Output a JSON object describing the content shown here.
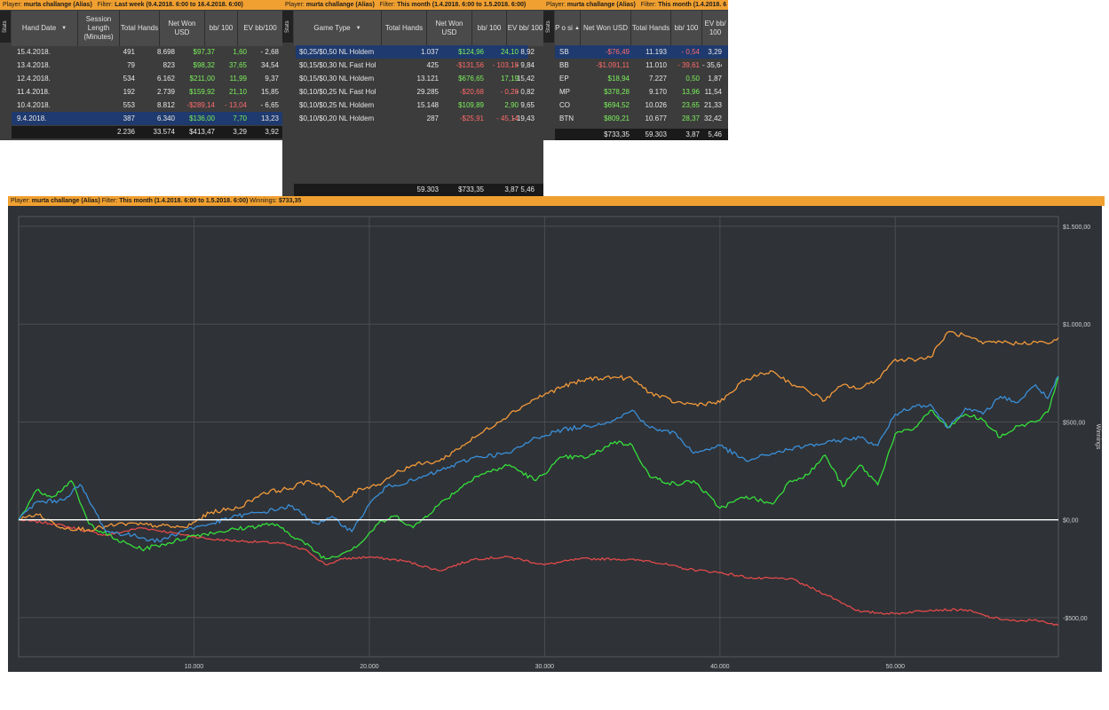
{
  "panel1": {
    "player_label": "Player:",
    "player": "murta challange (Alias)",
    "filter_label": "Filter:",
    "filter": "Last week (9.4.2018. 6:00 to 16.4.2018. 6:00)",
    "stats_tab": "Stats",
    "columns": [
      "Hand Date",
      "Session Length (Minutes)",
      "Total Hands",
      "Net Won USD",
      "bb/ 100",
      "EV bb/100"
    ],
    "rows": [
      {
        "date": "15.4.2018.",
        "len": "491",
        "hands": "8.698",
        "won": "$97,37",
        "bb": "1,60",
        "ev": "- 2,68",
        "won_pos": true,
        "bb_pos": true,
        "selected": false
      },
      {
        "date": "13.4.2018.",
        "len": "79",
        "hands": "823",
        "won": "$98,32",
        "bb": "37,65",
        "ev": "34,54",
        "won_pos": true,
        "bb_pos": true,
        "selected": false
      },
      {
        "date": "12.4.2018.",
        "len": "534",
        "hands": "6.162",
        "won": "$211,00",
        "bb": "11,99",
        "ev": "9,37",
        "won_pos": true,
        "bb_pos": true,
        "selected": false
      },
      {
        "date": "11.4.2018.",
        "len": "192",
        "hands": "2.739",
        "won": "$159,92",
        "bb": "21,10",
        "ev": "15,85",
        "won_pos": true,
        "bb_pos": true,
        "selected": false
      },
      {
        "date": "10.4.2018.",
        "len": "553",
        "hands": "8.812",
        "won": "-$289,14",
        "bb": "- 13,04",
        "ev": "- 6,65",
        "won_pos": false,
        "bb_pos": false,
        "selected": false
      },
      {
        "date": "9.4.2018.",
        "len": "387",
        "hands": "6.340",
        "won": "$136,00",
        "bb": "7,70",
        "ev": "13,23",
        "won_pos": true,
        "bb_pos": true,
        "selected": true
      }
    ],
    "totals": {
      "len": "2.236",
      "hands": "33.574",
      "won": "$413,47",
      "bb": "3,29",
      "ev": "3,92"
    }
  },
  "panel2": {
    "player_label": "Player:",
    "player": "murta challange (Alias)",
    "filter_label": "Filter:",
    "filter": "This month (1.4.2018. 6:00 to 1.5.2018. 6:00)",
    "stats_tab": "Stats",
    "columns": [
      "Game Type",
      "Total Hands",
      "Net Won USD",
      "bb/ 100",
      "EV bb/ 100"
    ],
    "rows": [
      {
        "game": "$0,25/$0,50 NL Holdem",
        "hands": "1.037",
        "won": "$124,96",
        "bb": "24,10",
        "ev": "8,92",
        "won_pos": true,
        "bb_pos": true,
        "selected": true
      },
      {
        "game": "$0,15/$0,30 NL Fast Hol",
        "hands": "425",
        "won": "-$131,56",
        "bb": "- 103,18",
        "ev": "- 9,84",
        "won_pos": false,
        "bb_pos": false,
        "selected": false
      },
      {
        "game": "$0,15/$0,30 NL Holdem",
        "hands": "13.121",
        "won": "$676,65",
        "bb": "17,19",
        "ev": "15,42",
        "won_pos": true,
        "bb_pos": true,
        "selected": false
      },
      {
        "game": "$0,10/$0,25 NL Fast Hol",
        "hands": "29.285",
        "won": "-$20,68",
        "bb": "- 0,28",
        "ev": "- 0,82",
        "won_pos": false,
        "bb_pos": false,
        "selected": false
      },
      {
        "game": "$0,10/$0,25 NL Holdem",
        "hands": "15.148",
        "won": "$109,89",
        "bb": "2,90",
        "ev": "9,65",
        "won_pos": true,
        "bb_pos": true,
        "selected": false
      },
      {
        "game": "$0,10/$0,20 NL Holdem",
        "hands": "287",
        "won": "-$25,91",
        "bb": "- 45,14",
        "ev": "- 19,43",
        "won_pos": false,
        "bb_pos": false,
        "selected": false
      }
    ],
    "totals": {
      "hands": "59.303",
      "won": "$733,35",
      "bb": "3,87",
      "ev": "5,46"
    }
  },
  "panel3": {
    "player_label": "Player:",
    "player": "murta challange (Alias)",
    "filter_label": "Filter:",
    "filter": "This month (1.4.2018. 6",
    "stats_tab": "Stats",
    "columns": [
      "P o si",
      "Net Won USD",
      "Total Hands",
      "bb/ 100",
      "EV bb/ 100"
    ],
    "rows": [
      {
        "pos": "SB",
        "won": "-$76,49",
        "hands": "11.193",
        "bb": "- 0,54",
        "ev": "3,29",
        "won_pos": false,
        "bb_pos": false,
        "selected": true
      },
      {
        "pos": "BB",
        "won": "-$1.091,11",
        "hands": "11.010",
        "bb": "- 39,61",
        "ev": "- 35,64",
        "won_pos": false,
        "bb_pos": false,
        "selected": false
      },
      {
        "pos": "EP",
        "won": "$18,94",
        "hands": "7.227",
        "bb": "0,50",
        "ev": "1,87",
        "won_pos": true,
        "bb_pos": true,
        "selected": false
      },
      {
        "pos": "MP",
        "won": "$378,28",
        "hands": "9.170",
        "bb": "13,96",
        "ev": "11,54",
        "won_pos": true,
        "bb_pos": true,
        "selected": false
      },
      {
        "pos": "CO",
        "won": "$694,52",
        "hands": "10.026",
        "bb": "23,65",
        "ev": "21,33",
        "won_pos": true,
        "bb_pos": true,
        "selected": false
      },
      {
        "pos": "BTN",
        "won": "$809,21",
        "hands": "10.677",
        "bb": "28,37",
        "ev": "32,42",
        "won_pos": true,
        "bb_pos": true,
        "selected": false
      }
    ],
    "totals": {
      "won": "$733,35",
      "hands": "59.303",
      "bb": "3,87",
      "ev": "5,46"
    }
  },
  "graph": {
    "player_label": "Player:",
    "player": "murta challange (Alias)",
    "filter_label": "Filter:",
    "filter": "This month (1.4.2018. 6:00 to 1.5.2018. 6:00)",
    "winnings_label": "Winnings:",
    "winnings": "$733,35"
  },
  "chart_data": {
    "type": "line",
    "ylabel": "Winnings",
    "xlim": [
      0,
      59303
    ],
    "ylim": [
      -700,
      1550
    ],
    "x_ticks": [
      10000,
      20000,
      30000,
      40000,
      50000
    ],
    "x_tick_labels": [
      "10.000",
      "20.000",
      "30.000",
      "40.000",
      "50.000"
    ],
    "y_ticks": [
      -500,
      0,
      500,
      1000,
      1500
    ],
    "y_tick_labels": [
      "-$500,00",
      "$0,00",
      "$500,00",
      "$1.000,00",
      "$1.500,00"
    ],
    "grid": true,
    "legend": "none",
    "colors": {
      "blue": "#3a8fd8",
      "orange": "#f29a3a",
      "green": "#35e03a",
      "red": "#e24a4a",
      "zero": "#ffffff",
      "background": "#2f3237",
      "grid": "#4a4d52"
    },
    "series": [
      {
        "color": "blue",
        "x": [
          0,
          1000,
          2500,
          3500,
          5000,
          6500,
          8000,
          9500,
          11000,
          12500,
          14000,
          15500,
          17000,
          18000,
          19000,
          20000,
          21000,
          22500,
          24000,
          26000,
          28000,
          29500,
          31000,
          32500,
          34000,
          35000,
          36000,
          37500,
          38500,
          40000,
          41500,
          43000,
          44000,
          45000,
          46000,
          47000,
          48000,
          49000,
          50000,
          51000,
          52000,
          53000,
          54000,
          55000,
          56000,
          57000,
          58000,
          58700,
          59303
        ],
        "y": [
          0,
          90,
          100,
          180,
          -60,
          -80,
          -110,
          -50,
          -20,
          20,
          40,
          70,
          -20,
          10,
          -60,
          80,
          170,
          200,
          250,
          320,
          340,
          420,
          460,
          480,
          510,
          560,
          470,
          440,
          340,
          380,
          300,
          340,
          360,
          380,
          390,
          410,
          420,
          380,
          540,
          580,
          590,
          470,
          570,
          540,
          630,
          600,
          690,
          620,
          733
        ]
      },
      {
        "color": "orange",
        "x": [
          0,
          1000,
          2500,
          4000,
          6000,
          8000,
          9500,
          11000,
          12500,
          14000,
          15500,
          16500,
          17500,
          18500,
          19500,
          20500,
          21500,
          22500,
          24000,
          26000,
          28000,
          29500,
          31000,
          32500,
          34000,
          35000,
          36000,
          37500,
          38500,
          40000,
          41500,
          43000,
          44000,
          45000,
          46000,
          47000,
          48000,
          49000,
          50000,
          51000,
          52000,
          53000,
          54000,
          55000,
          56000,
          57000,
          58000,
          58700,
          59303
        ],
        "y": [
          0,
          30,
          -40,
          -50,
          -20,
          -30,
          -40,
          40,
          60,
          140,
          160,
          200,
          170,
          90,
          160,
          180,
          240,
          280,
          300,
          420,
          540,
          620,
          680,
          720,
          730,
          720,
          650,
          600,
          590,
          600,
          720,
          760,
          700,
          660,
          610,
          690,
          670,
          720,
          820,
          820,
          830,
          960,
          940,
          900,
          910,
          900,
          910,
          900,
          930
        ]
      },
      {
        "color": "green",
        "x": [
          0,
          1000,
          2000,
          3000,
          4000,
          5500,
          7000,
          8500,
          10000,
          11500,
          13000,
          14500,
          16000,
          17500,
          18500,
          19500,
          20500,
          21500,
          22500,
          24000,
          26000,
          28000,
          29500,
          31000,
          32500,
          34000,
          35000,
          36000,
          37500,
          38500,
          40000,
          41500,
          43000,
          44000,
          45000,
          46000,
          47000,
          48000,
          49000,
          50000,
          51000,
          52000,
          53000,
          54000,
          55000,
          56000,
          57000,
          58000,
          58700,
          59303
        ],
        "y": [
          0,
          150,
          120,
          200,
          -20,
          -100,
          -150,
          -120,
          -80,
          -60,
          -40,
          -20,
          -100,
          -200,
          -170,
          -120,
          -20,
          20,
          -40,
          80,
          220,
          280,
          200,
          320,
          320,
          400,
          380,
          220,
          180,
          200,
          60,
          120,
          80,
          200,
          230,
          330,
          170,
          280,
          180,
          440,
          460,
          560,
          470,
          540,
          510,
          420,
          480,
          500,
          550,
          733
        ]
      },
      {
        "color": "red",
        "x": [
          0,
          2000,
          3500,
          5000,
          7000,
          9000,
          11000,
          13000,
          15000,
          16500,
          17500,
          18500,
          20000,
          22000,
          24000,
          26000,
          28000,
          30000,
          32000,
          34000,
          36000,
          38000,
          40000,
          42000,
          44000,
          46000,
          48000,
          50000,
          52000,
          54000,
          55500,
          57000,
          58000,
          58700,
          59303
        ],
        "y": [
          0,
          -20,
          -50,
          -80,
          -40,
          -70,
          -100,
          -110,
          -120,
          -160,
          -230,
          -200,
          -190,
          -210,
          -260,
          -200,
          -190,
          -230,
          -200,
          -200,
          -210,
          -250,
          -270,
          -300,
          -300,
          -380,
          -470,
          -480,
          -460,
          -460,
          -500,
          -520,
          -510,
          -530,
          -540
        ]
      },
      {
        "color": "zero",
        "x": [
          0,
          59303
        ],
        "y": [
          0,
          0
        ]
      }
    ]
  }
}
